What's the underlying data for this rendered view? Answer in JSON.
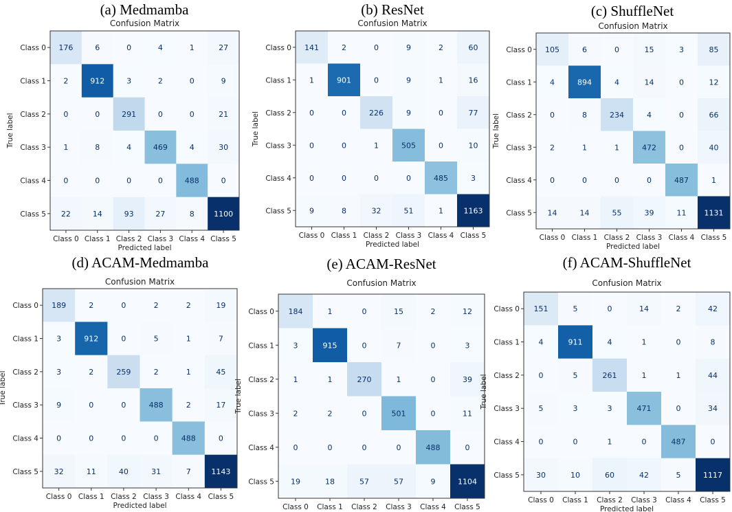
{
  "chart_data": [
    {
      "type": "heatmap",
      "panel_title": "(a) Medmamba",
      "title": "Confusion Matrix",
      "xlabel": "Predicted label",
      "ylabel": "True label",
      "labels": [
        "Class 0",
        "Class 1",
        "Class 2",
        "Class 3",
        "Class 4",
        "Class 5"
      ],
      "matrix": [
        [
          176,
          6,
          0,
          4,
          1,
          27
        ],
        [
          2,
          912,
          3,
          2,
          0,
          9
        ],
        [
          0,
          0,
          291,
          0,
          0,
          21
        ],
        [
          1,
          8,
          4,
          469,
          4,
          30
        ],
        [
          0,
          0,
          0,
          0,
          488,
          0
        ],
        [
          22,
          14,
          93,
          27,
          8,
          1100
        ]
      ]
    },
    {
      "type": "heatmap",
      "panel_title": "(b) ResNet",
      "title": "Confusion Matrix",
      "xlabel": "Predicted label",
      "ylabel": "True label",
      "labels": [
        "Class 0",
        "Class 1",
        "Class 2",
        "Class 3",
        "Class 4",
        "Class 5"
      ],
      "matrix": [
        [
          141,
          2,
          0,
          9,
          2,
          60
        ],
        [
          1,
          901,
          0,
          9,
          1,
          16
        ],
        [
          0,
          0,
          226,
          9,
          0,
          77
        ],
        [
          0,
          0,
          1,
          505,
          0,
          10
        ],
        [
          0,
          0,
          0,
          0,
          485,
          3
        ],
        [
          9,
          8,
          32,
          51,
          1,
          1163
        ]
      ]
    },
    {
      "type": "heatmap",
      "panel_title": "(c) ShuffleNet",
      "title": "Confusion Matrix",
      "xlabel": "Predicted label",
      "ylabel": "True label",
      "labels": [
        "Class 0",
        "Class 1",
        "Class 2",
        "Class 3",
        "Class 4",
        "Class 5"
      ],
      "matrix": [
        [
          105,
          6,
          0,
          15,
          3,
          85
        ],
        [
          4,
          894,
          4,
          14,
          0,
          12
        ],
        [
          0,
          8,
          234,
          4,
          0,
          66
        ],
        [
          2,
          1,
          1,
          472,
          0,
          40
        ],
        [
          0,
          0,
          0,
          0,
          487,
          1
        ],
        [
          14,
          14,
          55,
          39,
          11,
          1131
        ]
      ]
    },
    {
      "type": "heatmap",
      "panel_title": "(d) ACAM-Medmamba",
      "title": "Confusion Matrix",
      "xlabel": "Predicted label",
      "ylabel": "True label",
      "labels": [
        "Class 0",
        "Class 1",
        "Class 2",
        "Class 3",
        "Class 4",
        "Class 5"
      ],
      "matrix": [
        [
          189,
          2,
          0,
          2,
          2,
          19
        ],
        [
          3,
          912,
          0,
          5,
          1,
          7
        ],
        [
          3,
          2,
          259,
          2,
          1,
          45
        ],
        [
          9,
          0,
          0,
          488,
          2,
          17
        ],
        [
          0,
          0,
          0,
          0,
          488,
          0
        ],
        [
          32,
          11,
          40,
          31,
          7,
          1143
        ]
      ]
    },
    {
      "type": "heatmap",
      "panel_title": "(e) ACAM-ResNet",
      "title": "Confusion Matrix",
      "xlabel": "Predicted label",
      "ylabel": "True label",
      "labels": [
        "Class 0",
        "Class 1",
        "Class 2",
        "Class 3",
        "Class 4",
        "Class 5"
      ],
      "matrix": [
        [
          184,
          1,
          0,
          15,
          2,
          12
        ],
        [
          3,
          915,
          0,
          7,
          0,
          3
        ],
        [
          1,
          1,
          270,
          1,
          0,
          39
        ],
        [
          2,
          2,
          0,
          501,
          0,
          11
        ],
        [
          0,
          0,
          0,
          0,
          488,
          0
        ],
        [
          19,
          18,
          57,
          57,
          9,
          1104
        ]
      ]
    },
    {
      "type": "heatmap",
      "panel_title": "(f) ACAM-ShuffleNet",
      "title": "Confusion Matrix",
      "xlabel": "Predicted label",
      "ylabel": "True label",
      "labels": [
        "Class 0",
        "Class 1",
        "Class 2",
        "Class 3",
        "Class 4",
        "Class 5"
      ],
      "matrix": [
        [
          151,
          5,
          0,
          14,
          2,
          42
        ],
        [
          4,
          911,
          4,
          1,
          0,
          8
        ],
        [
          0,
          5,
          261,
          1,
          1,
          44
        ],
        [
          5,
          3,
          3,
          471,
          0,
          34
        ],
        [
          0,
          0,
          1,
          0,
          487,
          0
        ],
        [
          30,
          10,
          60,
          42,
          5,
          1117
        ]
      ]
    }
  ],
  "colormap": "Blues"
}
